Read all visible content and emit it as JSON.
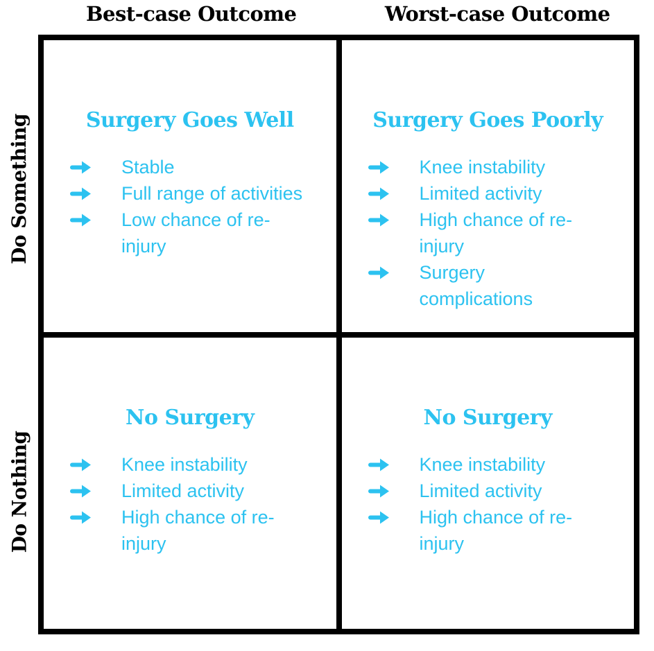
{
  "colors": {
    "accent": "#2cc2f0",
    "ink": "#000000",
    "background": "#ffffff"
  },
  "column_headers": [
    {
      "label": "Best-case Outcome"
    },
    {
      "label": "Worst-case Outcome"
    }
  ],
  "row_headers": [
    {
      "label": "Do Something"
    },
    {
      "label": "Do Nothing"
    }
  ],
  "bullet_icon": "arrow-right",
  "quadrants": [
    {
      "title": "Surgery Goes Well",
      "items": [
        "Stable",
        "Full range of activities",
        "Low chance of re-injury"
      ]
    },
    {
      "title": "Surgery Goes Poorly",
      "items": [
        "Knee instability",
        "Limited activity",
        "High chance of re-injury",
        "Surgery complications"
      ]
    },
    {
      "title": "No Surgery",
      "items": [
        "Knee instability",
        "Limited activity",
        "High chance of re-injury"
      ]
    },
    {
      "title": "No Surgery",
      "items": [
        "Knee instability",
        "Limited activity",
        "High chance of re-injury"
      ]
    }
  ]
}
